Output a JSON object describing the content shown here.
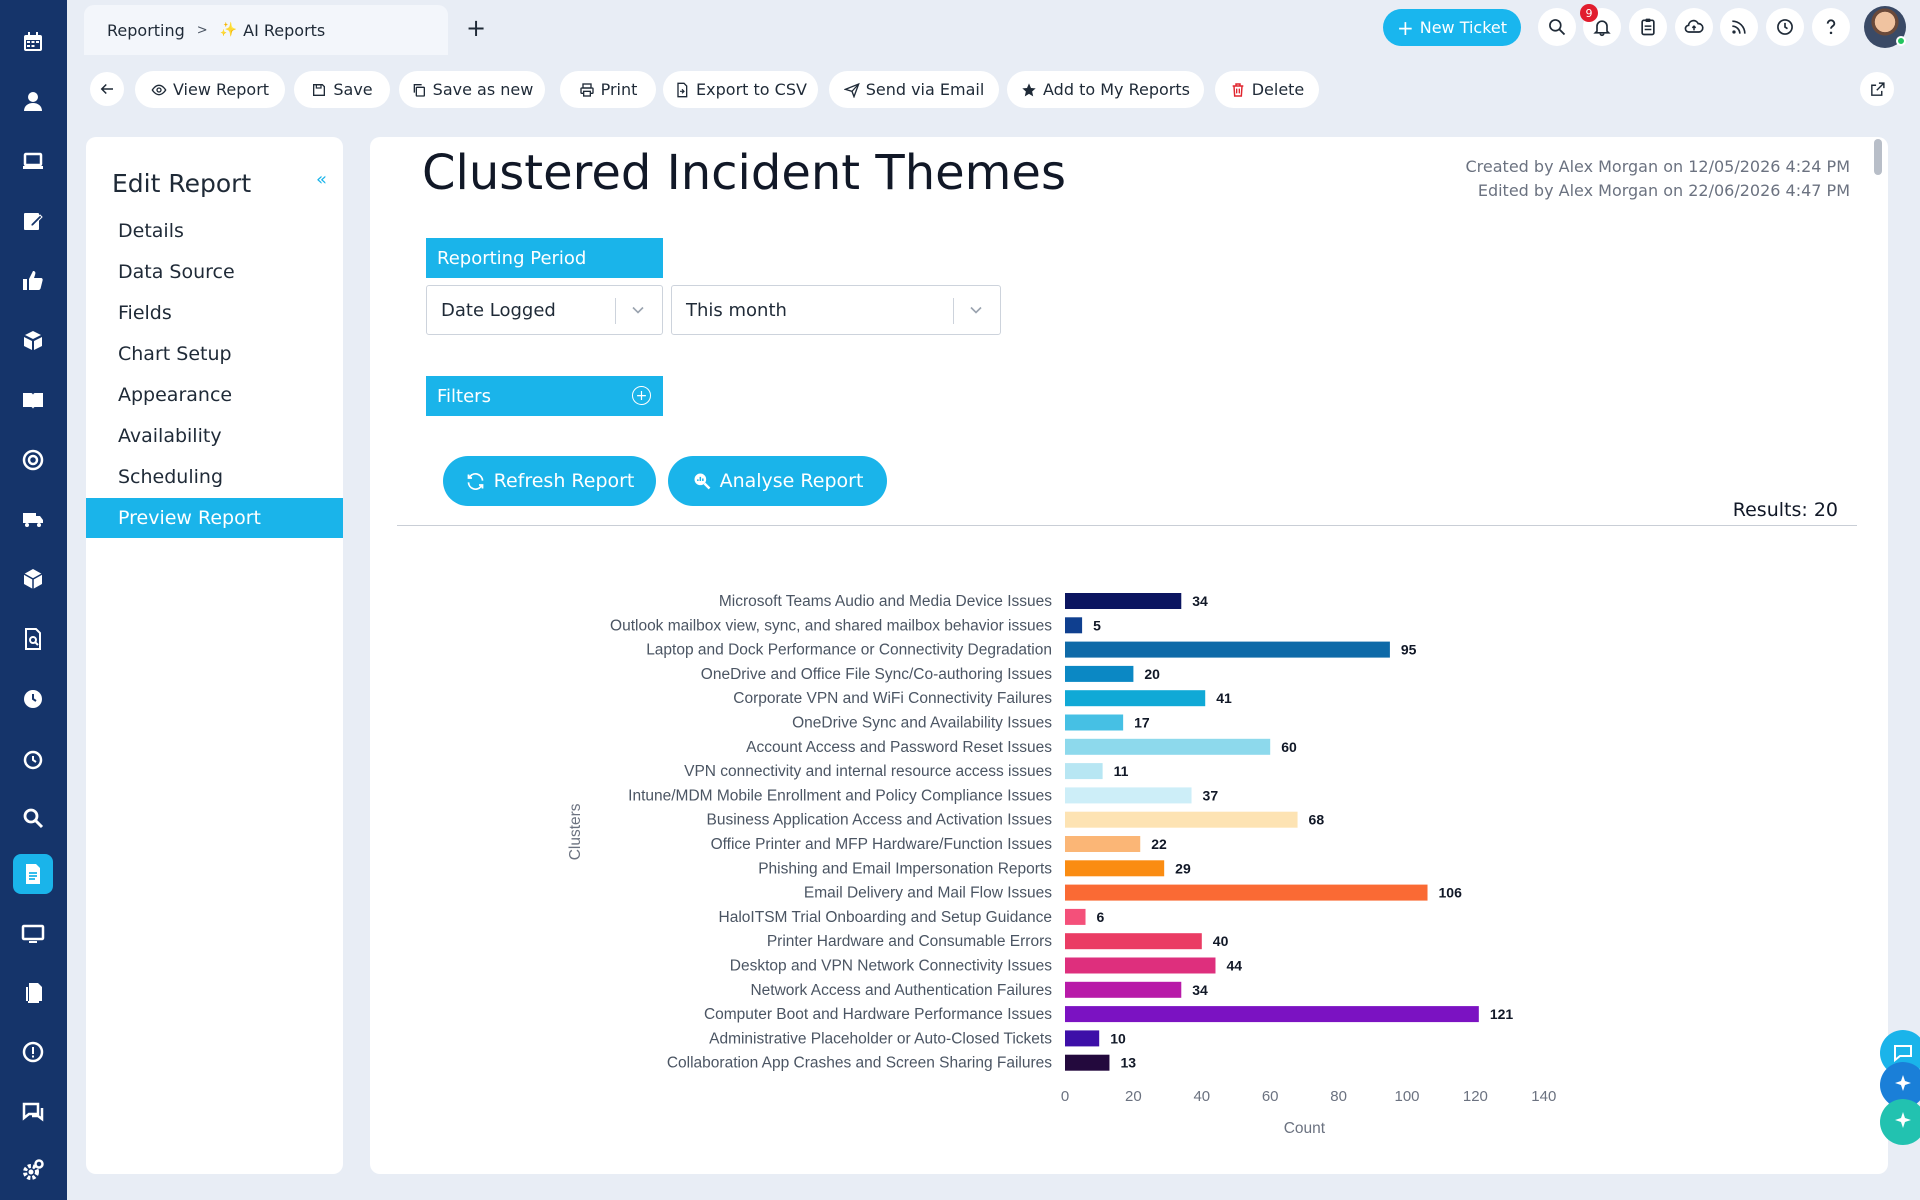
{
  "breadcrumb": {
    "parent": "Reporting",
    "current": "AI Reports"
  },
  "topbar": {
    "new_ticket_label": "New Ticket",
    "notification_count": "9"
  },
  "toolbar": {
    "buttons": [
      {
        "label": "View Report",
        "icon": "eye-icon"
      },
      {
        "label": "Save",
        "icon": "floppy-disk-icon"
      },
      {
        "label": "Save as new",
        "icon": "copy-icon"
      },
      {
        "label": "Print",
        "icon": "printer-icon"
      },
      {
        "label": "Export to CSV",
        "icon": "file-export-icon"
      },
      {
        "label": "Send via Email",
        "icon": "paper-plane-icon"
      },
      {
        "label": "Add to My Reports",
        "icon": "star-icon"
      },
      {
        "label": "Delete",
        "icon": "trash-icon"
      }
    ]
  },
  "sidebar": {
    "title": "Edit Report",
    "items": [
      {
        "label": "Details"
      },
      {
        "label": "Data Source"
      },
      {
        "label": "Fields"
      },
      {
        "label": "Chart Setup"
      },
      {
        "label": "Appearance"
      },
      {
        "label": "Availability"
      },
      {
        "label": "Scheduling"
      },
      {
        "label": "Preview Report",
        "active": true
      }
    ]
  },
  "report": {
    "title": "Clustered Incident Themes",
    "created": "Created by Alex Morgan on 12/05/2026 4:24 PM",
    "edited": "Edited by Alex Morgan on 22/06/2026 4:47 PM",
    "reporting_period_label": "Reporting Period",
    "date_field": "Date Logged",
    "period": "This month",
    "filters_label": "Filters",
    "refresh_label": "Refresh Report",
    "analyse_label": "Analyse Report",
    "results": "Results: 20"
  },
  "colors": {
    "accent": "#1ab4ea",
    "rail": "#15346a",
    "delete": "#e0262f"
  },
  "chart_data": {
    "type": "bar",
    "orientation": "horizontal",
    "xlabel": "Count",
    "ylabel": "Clusters",
    "xlim": [
      0,
      140
    ],
    "xticks": [
      0,
      20,
      40,
      60,
      80,
      100,
      120,
      140
    ],
    "grid": false,
    "categories": [
      "Microsoft Teams Audio and Media Device Issues",
      "Outlook mailbox view, sync, and shared mailbox behavior issues",
      "Laptop and Dock Performance or Connectivity Degradation",
      "OneDrive and Office File Sync/Co-authoring Issues",
      "Corporate VPN and WiFi Connectivity Failures",
      "OneDrive Sync and Availability Issues",
      "Account Access and Password Reset Issues",
      "VPN connectivity and internal resource access issues",
      "Intune/MDM Mobile Enrollment and Policy Compliance Issues",
      "Business Application Access and Activation Issues",
      "Office Printer and MFP Hardware/Function Issues",
      "Phishing and Email Impersonation Reports",
      "Email Delivery and Mail Flow Issues",
      "HaloITSM Trial Onboarding and Setup Guidance",
      "Printer Hardware and Consumable Errors",
      "Desktop and VPN Network Connectivity Issues",
      "Network Access and Authentication Failures",
      "Computer Boot and Hardware Performance Issues",
      "Administrative Placeholder or Auto-Closed Tickets",
      "Collaboration App Crashes and Screen Sharing Failures"
    ],
    "values": [
      34,
      5,
      95,
      20,
      41,
      17,
      60,
      11,
      37,
      68,
      22,
      29,
      106,
      6,
      40,
      44,
      34,
      121,
      10,
      13
    ],
    "colors": [
      "#0b1560",
      "#0f3f8f",
      "#0e6aa8",
      "#0b88c4",
      "#10a9d6",
      "#46c0e4",
      "#8dd9ec",
      "#b7e6f3",
      "#cdeef8",
      "#fde3b3",
      "#fbb676",
      "#fa8c12",
      "#fa6a34",
      "#f4507a",
      "#ea3c64",
      "#de2f7d",
      "#b81aa8",
      "#7b12c2",
      "#3d0fa8",
      "#23093d"
    ]
  }
}
